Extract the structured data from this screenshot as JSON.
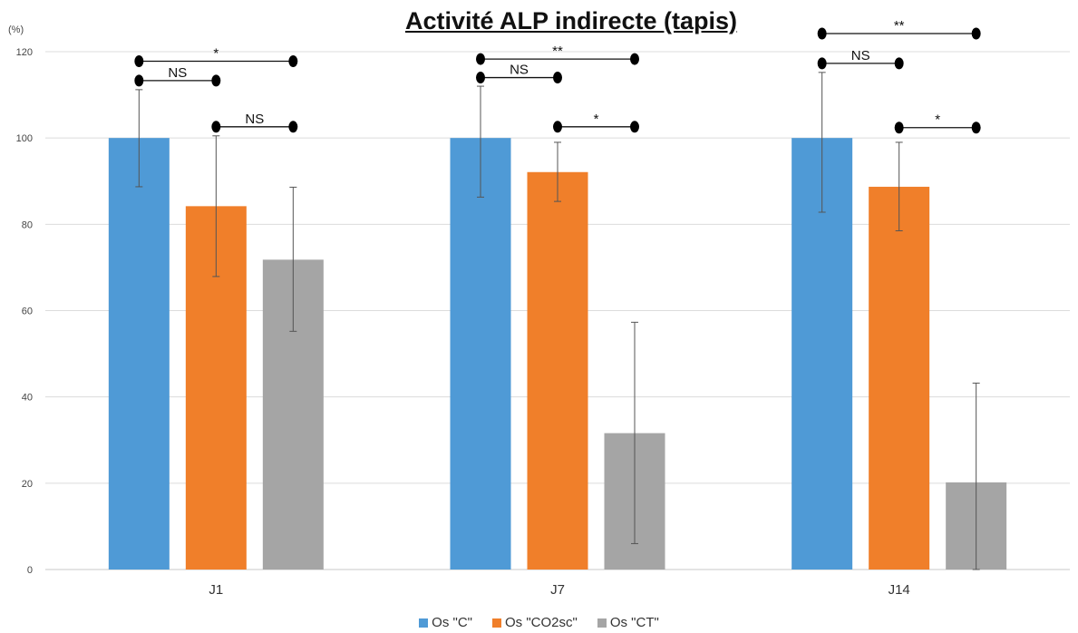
{
  "chart_data": {
    "type": "bar",
    "title": "Activité ALP indirecte (tapis)",
    "ylabel": "(%)",
    "xlabel": "",
    "ylim": [
      0,
      120
    ],
    "yticks": [
      0,
      20,
      40,
      60,
      80,
      100,
      120
    ],
    "grid": true,
    "legend_position": "bottom",
    "categories": [
      "J1",
      "J7",
      "J14"
    ],
    "series": [
      {
        "name": "Os \"C\"",
        "color": "#4f9ad6",
        "values": [
          100,
          100,
          100
        ],
        "error": [
          [
            88.7,
            111.2
          ],
          [
            86.3,
            112.0
          ],
          [
            82.8,
            115.2
          ]
        ]
      },
      {
        "name": "Os \"CO2sc\"",
        "color": "#f07f2a",
        "values": [
          84.2,
          92.1,
          88.7
        ],
        "error": [
          [
            67.9,
            100.5
          ],
          [
            85.3,
            99.0
          ],
          [
            78.5,
            99.0
          ]
        ]
      },
      {
        "name": "Os \"CT\"",
        "color": "#a5a5a5",
        "values": [
          71.8,
          31.6,
          20.2
        ],
        "error": [
          [
            55.2,
            88.6
          ],
          [
            6.0,
            57.3
          ],
          [
            0,
            43.2
          ]
        ]
      }
    ],
    "annotations": [
      {
        "category": 0,
        "from": 0,
        "to": 1,
        "label": "NS",
        "y": 113.3
      },
      {
        "category": 0,
        "from": 0,
        "to": 2,
        "label": "*",
        "y": 117.8
      },
      {
        "category": 0,
        "from": 1,
        "to": 2,
        "label": "NS",
        "y": 102.6
      },
      {
        "category": 1,
        "from": 0,
        "to": 1,
        "label": "NS",
        "y": 114.0
      },
      {
        "category": 1,
        "from": 0,
        "to": 2,
        "label": "**",
        "y": 118.3
      },
      {
        "category": 1,
        "from": 1,
        "to": 2,
        "label": "*",
        "y": 102.6
      },
      {
        "category": 2,
        "from": 0,
        "to": 1,
        "label": "NS",
        "y": 117.3
      },
      {
        "category": 2,
        "from": 0,
        "to": 2,
        "label": "**",
        "y": 124.2
      },
      {
        "category": 2,
        "from": 1,
        "to": 2,
        "label": "*",
        "y": 102.4
      }
    ]
  }
}
